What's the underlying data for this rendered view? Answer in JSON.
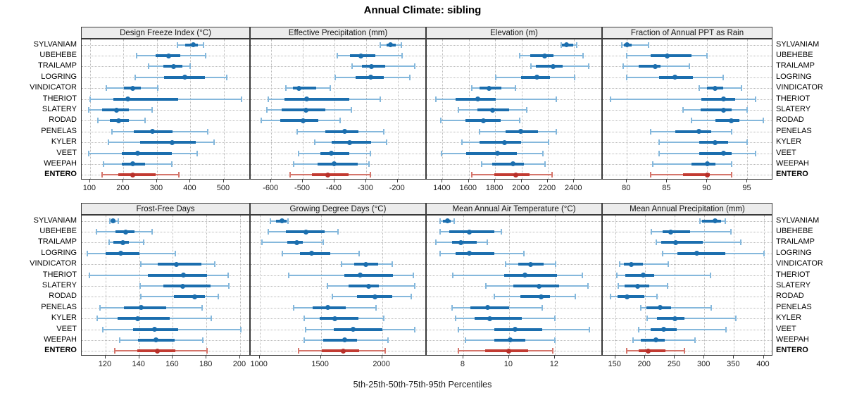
{
  "title": "Annual Climate: sibling",
  "caption": "5th-25th-50th-75th-95th Percentiles",
  "colors": {
    "series_main": "#1b6eae",
    "series_light": "#85b8dc",
    "highlight_main": "#c23b32",
    "highlight_light": "#d5756b",
    "highlight_dot": "#b8302a",
    "strip_bg": "#ececec",
    "panel_border": "#3a3a3a",
    "grid": "#b9b9b9"
  },
  "chart_data": {
    "type": "dotplot",
    "subtype": "lattice percentile whisker plot, 2 rows x 4 columns of panels",
    "percentiles": [
      5,
      25,
      50,
      75,
      95
    ],
    "grid": true,
    "legend_position": "none",
    "sites": [
      "SYLVANIAM",
      "UBEHEBE",
      "TRAILAMP",
      "LOGRING",
      "VINDICATOR",
      "THERIOT",
      "SLATERY",
      "RODAD",
      "PENELAS",
      "KYLER",
      "VEET",
      "WEEPAH",
      "ENTERO"
    ],
    "highlight_site": "ENTERO",
    "panels": [
      {
        "title": "Design Freeze Index (°C)",
        "grid_row": 0,
        "grid_col": 0,
        "xlim": [
          75,
          580
        ],
        "ticks": [
          100,
          200,
          300,
          400,
          500
        ],
        "values": [
          [
            362,
            385,
            408,
            422,
            438
          ],
          [
            240,
            295,
            335,
            370,
            445
          ],
          [
            275,
            320,
            350,
            376,
            400
          ],
          [
            235,
            321,
            383,
            444,
            509
          ],
          [
            149,
            202,
            228,
            251,
            303
          ],
          [
            100,
            170,
            212,
            363,
            553
          ],
          [
            96,
            135,
            179,
            216,
            286
          ],
          [
            124,
            160,
            186,
            215,
            265
          ],
          [
            166,
            230,
            286,
            346,
            452
          ],
          [
            155,
            250,
            345,
            415,
            470
          ],
          [
            95,
            195,
            243,
            345,
            420
          ],
          [
            140,
            195,
            228,
            265,
            345
          ],
          [
            135,
            185,
            228,
            295,
            365
          ]
        ]
      },
      {
        "title": "Effective Precipitation (mm)",
        "grid_row": 0,
        "grid_col": 1,
        "xlim": [
          -665,
          -108
        ],
        "ticks": [
          -600,
          -500,
          -400,
          -300,
          -200
        ],
        "values": [
          [
            -254,
            -235,
            -222,
            -205,
            -189
          ],
          [
            -390,
            -350,
            -317,
            -270,
            -185
          ],
          [
            -345,
            -313,
            -283,
            -240,
            -145
          ],
          [
            -397,
            -333,
            -285,
            -243,
            -162
          ],
          [
            -553,
            -532,
            -513,
            -457,
            -414
          ],
          [
            -609,
            -559,
            -488,
            -352,
            -256
          ],
          [
            -613,
            -566,
            -490,
            -428,
            -347
          ],
          [
            -631,
            -572,
            -499,
            -450,
            -383
          ],
          [
            -518,
            -429,
            -368,
            -323,
            -243
          ],
          [
            -462,
            -409,
            -353,
            -284,
            -235
          ],
          [
            -514,
            -444,
            -410,
            -352,
            -286
          ],
          [
            -530,
            -454,
            -400,
            -327,
            -290
          ],
          [
            -540,
            -471,
            -420,
            -356,
            -287
          ]
        ]
      },
      {
        "title": "Elevation (m)",
        "grid_row": 0,
        "grid_col": 2,
        "xlim": [
          1280,
          2618
        ],
        "ticks": [
          1400,
          1600,
          1800,
          2000,
          2200,
          2400
        ],
        "values": [
          [
            2300,
            2310,
            2345,
            2395,
            2420
          ],
          [
            1985,
            2065,
            2175,
            2245,
            2470
          ],
          [
            2070,
            2110,
            2240,
            2315,
            2510
          ],
          [
            1805,
            1995,
            2120,
            2215,
            2405
          ],
          [
            1625,
            1680,
            1755,
            1850,
            1955
          ],
          [
            1350,
            1500,
            1670,
            1805,
            2265
          ],
          [
            1520,
            1665,
            1780,
            1905,
            2040
          ],
          [
            1385,
            1575,
            1710,
            1840,
            1985
          ],
          [
            1680,
            1880,
            1995,
            2125,
            2265
          ],
          [
            1545,
            1680,
            1870,
            1995,
            2205
          ],
          [
            1390,
            1580,
            1820,
            1965,
            2165
          ],
          [
            1695,
            1780,
            1935,
            2020,
            2180
          ],
          [
            1620,
            1795,
            1955,
            2060,
            2230
          ]
        ]
      },
      {
        "title": "Fraction of Annual PPT as Rain",
        "grid_row": 0,
        "grid_col": 3,
        "xlim": [
          77,
          98.2
        ],
        "ticks": [
          80,
          85,
          90,
          95
        ],
        "values": [
          [
            79.4,
            79.6,
            80.0,
            80.6,
            82.7
          ],
          [
            80,
            83,
            85,
            88,
            90
          ],
          [
            79.5,
            81.5,
            83.5,
            84.2,
            87.8
          ],
          [
            80,
            84,
            86,
            88.2,
            92
          ],
          [
            89,
            90,
            91,
            92,
            94.3
          ],
          [
            78,
            89.3,
            92,
            93.5,
            96
          ],
          [
            87,
            89.2,
            92,
            93,
            95
          ],
          [
            88,
            91,
            93,
            94,
            97
          ],
          [
            83,
            86,
            89,
            90.5,
            93
          ],
          [
            84,
            89,
            91,
            92.6,
            95
          ],
          [
            84,
            89,
            92,
            93,
            96
          ],
          [
            83.2,
            88,
            90,
            91,
            93
          ],
          [
            83,
            87,
            90,
            90.3,
            93
          ]
        ]
      },
      {
        "title": "Frost-Free Days",
        "grid_row": 1,
        "grid_col": 0,
        "xlim": [
          105.8,
          206.3
        ],
        "ticks": [
          120,
          140,
          160,
          180,
          200
        ],
        "values": [
          [
            122.5,
            123.5,
            124.5,
            126,
            127.5
          ],
          [
            114.5,
            126,
            132,
            137,
            147.5
          ],
          [
            122,
            124.5,
            130.5,
            134,
            142.5
          ],
          [
            109,
            120,
            129,
            140,
            161.5
          ],
          [
            141,
            151,
            162,
            177,
            185
          ],
          [
            110.5,
            145,
            166.5,
            180.5,
            193
          ],
          [
            140.5,
            154.5,
            166,
            182.5,
            193.5
          ],
          [
            141,
            160.5,
            173,
            179,
            187
          ],
          [
            116.5,
            131,
            141,
            156,
            177.5
          ],
          [
            115,
            127,
            139,
            158,
            183
          ],
          [
            118.5,
            136.5,
            149,
            163,
            200.5
          ],
          [
            128.5,
            139.5,
            150,
            161,
            178
          ],
          [
            125.5,
            139,
            151,
            161.5,
            180.5
          ]
        ]
      },
      {
        "title": "Growing Degree Days (°C)",
        "grid_row": 1,
        "grid_col": 1,
        "xlim": [
          927,
          2364
        ],
        "ticks": [
          1000,
          1500,
          2000
        ],
        "values": [
          [
            1090,
            1135,
            1180,
            1220,
            1230
          ],
          [
            1070,
            1215,
            1380,
            1530,
            1640
          ],
          [
            1020,
            1225,
            1305,
            1355,
            1520
          ],
          [
            1185,
            1330,
            1427,
            1576,
            1815
          ],
          [
            1670,
            1770,
            1865,
            1970,
            2080
          ],
          [
            1240,
            1690,
            1820,
            2090,
            2255
          ],
          [
            1555,
            1725,
            1890,
            1975,
            2265
          ],
          [
            1595,
            1795,
            1940,
            2080,
            2240
          ],
          [
            1280,
            1430,
            1555,
            1705,
            1950
          ],
          [
            1365,
            1490,
            1615,
            1805,
            2015
          ],
          [
            1375,
            1605,
            1765,
            2000,
            2265
          ],
          [
            1365,
            1520,
            1695,
            1795,
            2045
          ],
          [
            1320,
            1505,
            1680,
            1810,
            2025
          ]
        ]
      },
      {
        "title": "Mean Annual Air Temperature (°C)",
        "grid_row": 1,
        "grid_col": 2,
        "xlim": [
          6.4,
          14.1
        ],
        "ticks": [
          8,
          10,
          12
        ],
        "values": [
          [
            7.0,
            7.1,
            7.3,
            7.45,
            7.6
          ],
          [
            7.0,
            7.4,
            8.25,
            9.35,
            9.65
          ],
          [
            6.8,
            7.5,
            7.9,
            8.6,
            9.05
          ],
          [
            7.0,
            7.65,
            8.25,
            9.35,
            10.65
          ],
          [
            9.85,
            10.4,
            10.95,
            11.5,
            12.05
          ],
          [
            7.55,
            9.8,
            10.7,
            12.1,
            13.2
          ],
          [
            9.0,
            10.2,
            11.3,
            12.2,
            13.45
          ],
          [
            9.35,
            10.5,
            11.4,
            11.8,
            12.9
          ],
          [
            7.5,
            8.3,
            9.05,
            10.0,
            11.45
          ],
          [
            7.65,
            8.5,
            9.15,
            10.55,
            12.0
          ],
          [
            7.8,
            9.35,
            10.25,
            11.45,
            13.5
          ],
          [
            8.1,
            9.35,
            10.05,
            10.7,
            12.0
          ],
          [
            7.8,
            8.95,
            10.0,
            10.85,
            11.9
          ]
        ]
      },
      {
        "title": "Mean Annual Precipitation (mm)",
        "grid_row": 1,
        "grid_col": 3,
        "xlim": [
          129,
          416
        ],
        "ticks": [
          150,
          200,
          250,
          300,
          350,
          400
        ],
        "values": [
          [
            293,
            296,
            318,
            328,
            335
          ],
          [
            211,
            230,
            244,
            276,
            345
          ],
          [
            219,
            228,
            252,
            297,
            361
          ],
          [
            230,
            255,
            287,
            335,
            400
          ],
          [
            158,
            165,
            177,
            197,
            239
          ],
          [
            153,
            167,
            197,
            216,
            311
          ],
          [
            155,
            166,
            188,
            207,
            238
          ],
          [
            142,
            154,
            170,
            199,
            220
          ],
          [
            193,
            203,
            226,
            244,
            312
          ],
          [
            204,
            220,
            251,
            266,
            353
          ],
          [
            190,
            210,
            231,
            254,
            337
          ],
          [
            180,
            193,
            218,
            233,
            284
          ],
          [
            169,
            189,
            205,
            235,
            266
          ]
        ]
      }
    ]
  }
}
